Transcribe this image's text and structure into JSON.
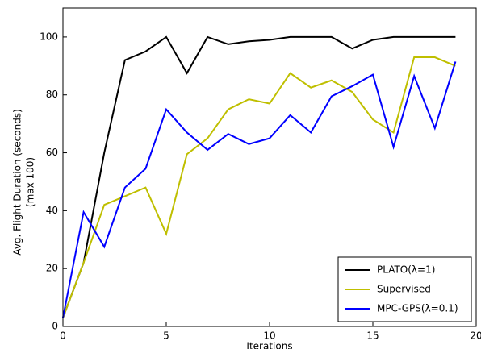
{
  "chart_data": {
    "type": "line",
    "xlabel": "Iterations",
    "ylabel": [
      "Avg. Flight Duration (seconds)",
      "(max 100)"
    ],
    "x": [
      0,
      1,
      2,
      3,
      4,
      5,
      6,
      7,
      8,
      9,
      10,
      11,
      12,
      13,
      14,
      15,
      16,
      17,
      18,
      19
    ],
    "series": [
      {
        "name": "PLATO(λ=1)",
        "color": "#000000",
        "values": [
          3,
          22,
          60,
          92,
          95,
          100,
          87.5,
          100,
          97.5,
          98.5,
          99,
          100,
          100,
          100,
          96,
          99,
          100,
          100,
          100,
          100
        ]
      },
      {
        "name": "Supervised",
        "color": "#bfbf00",
        "values": [
          3,
          22,
          42,
          45,
          48,
          32,
          59.5,
          65,
          75,
          78.5,
          77,
          87.5,
          82.5,
          85,
          81,
          71.5,
          67,
          93,
          93,
          90
        ]
      },
      {
        "name": "MPC-GPS(λ=0.1)",
        "color": "#0000ff",
        "values": [
          3,
          39.5,
          27.5,
          48,
          54.5,
          75,
          67,
          61,
          66.5,
          63,
          65,
          73,
          67,
          79.5,
          83,
          87,
          62,
          86.5,
          68.5,
          91.5
        ]
      }
    ],
    "xlim": [
      0,
      20
    ],
    "xticks": [
      0,
      5,
      10,
      15,
      20
    ],
    "ylim": [
      0,
      110
    ],
    "yticks": [
      0,
      20,
      40,
      60,
      80,
      100
    ],
    "legend": "lower right"
  }
}
